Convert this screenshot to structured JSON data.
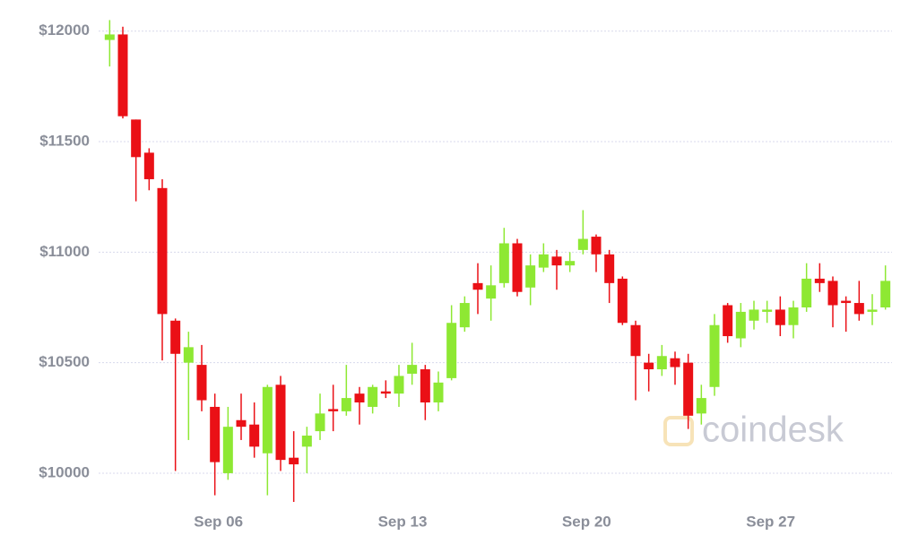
{
  "chart_data": {
    "type": "candlestick",
    "categories": [
      null,
      null,
      null,
      null,
      null,
      null,
      null,
      null,
      "Sep 06",
      null,
      null,
      null,
      null,
      null,
      null,
      null,
      null,
      null,
      null,
      null,
      null,
      null,
      "Sep 13",
      null,
      null,
      null,
      null,
      null,
      null,
      null,
      null,
      null,
      null,
      null,
      null,
      null,
      "Sep 20",
      null,
      null,
      null,
      null,
      null,
      null,
      null,
      null,
      null,
      null,
      null,
      null,
      null,
      "Sep 27",
      null,
      null,
      null,
      null,
      null,
      null,
      null,
      null,
      null
    ],
    "open": [
      11960,
      11985,
      11600,
      11450,
      11290,
      10690,
      10500,
      10490,
      10300,
      10000,
      10240,
      10220,
      10090,
      10400,
      10070,
      10120,
      10190,
      10290,
      10280,
      10360,
      10300,
      10370,
      10360,
      10450,
      10470,
      10320,
      10430,
      10660,
      10860,
      10790,
      10860,
      11040,
      10840,
      10930,
      10980,
      10940,
      11010,
      11070,
      10990,
      10880,
      10670,
      10500,
      10470,
      10520,
      10500,
      10270,
      10390,
      10760,
      10610,
      10690,
      10730,
      10740,
      10670,
      10750,
      10880,
      10870,
      10780,
      10770,
      10730,
      10750
    ],
    "high": [
      12050,
      12020,
      11600,
      11470,
      11330,
      10700,
      10640,
      10580,
      10360,
      10300,
      10360,
      10320,
      10400,
      10440,
      10190,
      10210,
      10360,
      10400,
      10490,
      10390,
      10400,
      10420,
      10490,
      10590,
      10490,
      10460,
      10760,
      10800,
      10950,
      10940,
      11110,
      11060,
      10990,
      11040,
      11010,
      11000,
      11190,
      11080,
      11010,
      10890,
      10690,
      10540,
      10580,
      10550,
      10540,
      10400,
      10720,
      10770,
      10770,
      10780,
      10780,
      10800,
      10780,
      10950,
      10950,
      10890,
      10800,
      10870,
      10810,
      10940
    ],
    "low": [
      11840,
      11605,
      11230,
      11280,
      10510,
      10010,
      10150,
      10280,
      9900,
      9970,
      10150,
      10070,
      9900,
      10010,
      9870,
      10000,
      10150,
      10190,
      10260,
      10220,
      10270,
      10340,
      10300,
      10400,
      10240,
      10280,
      10420,
      10640,
      10720,
      10690,
      10840,
      10800,
      10760,
      10910,
      10830,
      10910,
      10990,
      10910,
      10770,
      10670,
      10330,
      10370,
      10440,
      10400,
      10200,
      10220,
      10350,
      10590,
      10570,
      10650,
      10680,
      10620,
      10610,
      10730,
      10820,
      10660,
      10640,
      10690,
      10670,
      10740
    ],
    "close": [
      11985,
      11615,
      11430,
      11330,
      10720,
      10540,
      10570,
      10330,
      10050,
      10210,
      10210,
      10120,
      10390,
      10060,
      10040,
      10170,
      10270,
      10280,
      10340,
      10320,
      10390,
      10360,
      10440,
      10490,
      10320,
      10410,
      10680,
      10770,
      10830,
      10850,
      11040,
      10820,
      10940,
      10990,
      10940,
      10960,
      11060,
      10990,
      10860,
      10680,
      10530,
      10470,
      10530,
      10480,
      10260,
      10340,
      10670,
      10620,
      10730,
      10740,
      10740,
      10670,
      10750,
      10880,
      10860,
      10760,
      10770,
      10720,
      10740,
      10870
    ],
    "up_color": "#8ee833",
    "down_color": "#ea1016",
    "ylim": [
      9870,
      12080
    ],
    "yticks": [
      {
        "value": 10000,
        "label": "$10000"
      },
      {
        "value": 10500,
        "label": "$10500"
      },
      {
        "value": 11000,
        "label": "$11000"
      },
      {
        "value": 11500,
        "label": "$11500"
      },
      {
        "value": 12000,
        "label": "$12000"
      }
    ],
    "grid": true,
    "watermark": "coindesk"
  }
}
